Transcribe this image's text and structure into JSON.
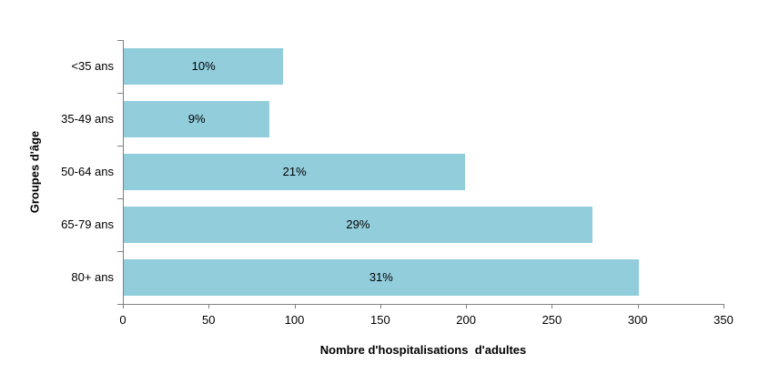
{
  "chart_data": {
    "type": "bar",
    "orientation": "horizontal",
    "categories": [
      "<35 ans",
      "35-49 ans",
      "50-64 ans",
      "65-79 ans",
      "80+ ans"
    ],
    "values": [
      93,
      85,
      199,
      273,
      300
    ],
    "bar_labels": [
      "10%",
      "9%",
      "21%",
      "29%",
      "31%"
    ],
    "xlabel": "Nombre d'hospitalisations  d'adultes",
    "ylabel": "Groupes d'âge",
    "xlim": [
      0,
      350
    ],
    "x_ticks": [
      0,
      50,
      100,
      150,
      200,
      250,
      300,
      350
    ],
    "grid": false,
    "legend": null,
    "bar_color": "#92CDDC",
    "axis_color": "#808080",
    "text_color": "#000000"
  }
}
